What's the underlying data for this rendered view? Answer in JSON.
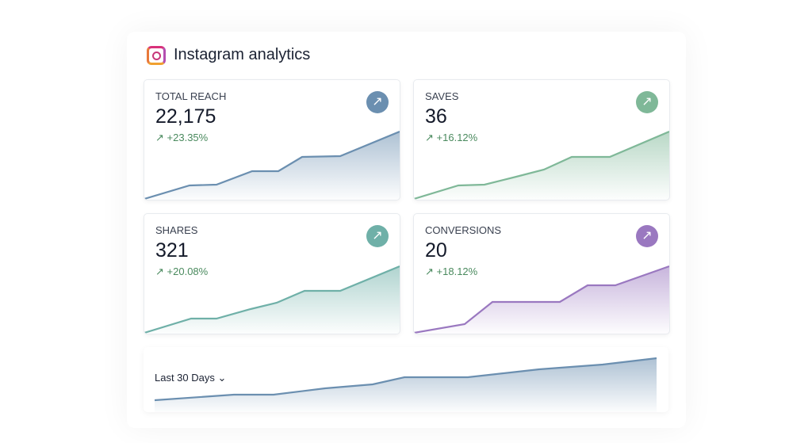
{
  "header": {
    "title": "Instagram analytics",
    "icon": "instagram-icon"
  },
  "cards": [
    {
      "label": "TOTAL REACH",
      "value": "22,175",
      "change": "+23.35%",
      "color": "#6b8fb0",
      "icon": "arrow-up-right-icon"
    },
    {
      "label": "SAVES",
      "value": "36",
      "change": "+16.12%",
      "color": "#7fb898",
      "icon": "arrow-up-right-icon"
    },
    {
      "label": "SHARES",
      "value": "321",
      "change": "+20.08%",
      "color": "#6fb0a8",
      "icon": "arrow-up-right-icon"
    },
    {
      "label": "CONVERSIONS",
      "value": "20",
      "change": "+18.12%",
      "color": "#9a78c0",
      "icon": "arrow-up-right-icon"
    }
  ],
  "footer": {
    "range_label": "Last 30 Days",
    "range_icon": "chevron-down-icon",
    "color": "#6b8fb0"
  }
}
